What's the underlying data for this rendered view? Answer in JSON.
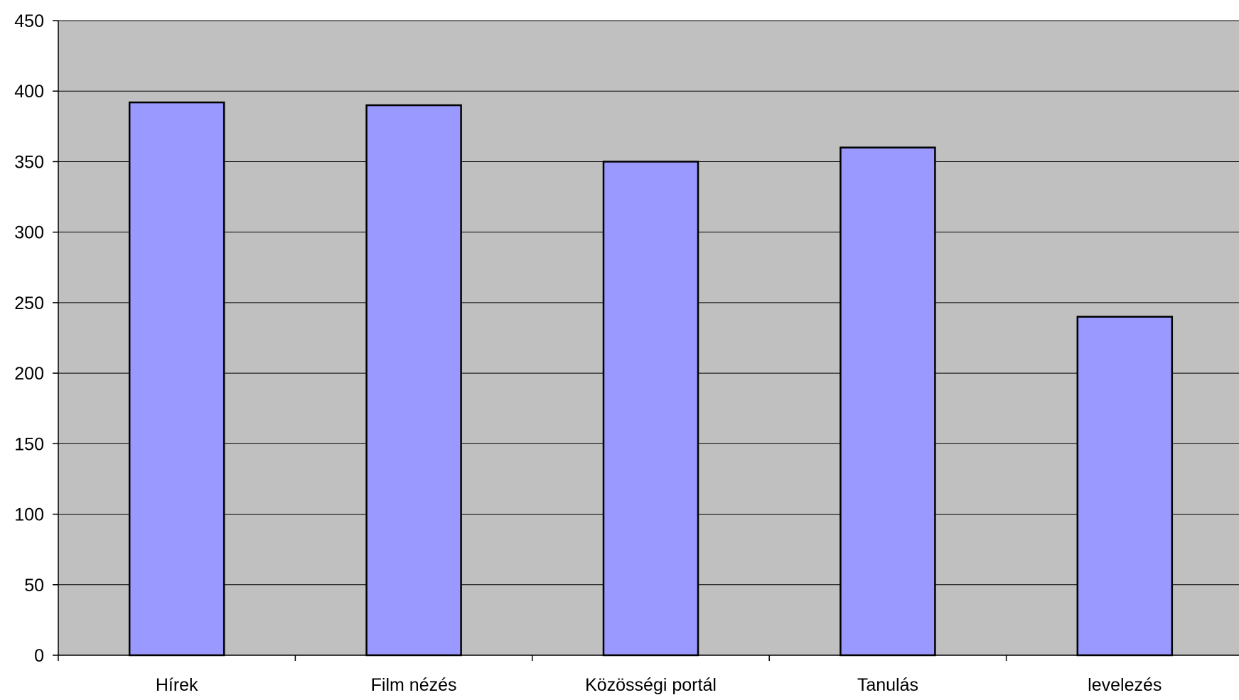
{
  "chart_data": {
    "type": "bar",
    "categories": [
      "Hírek",
      "Film nézés",
      "Közösségi portál",
      "Tanulás",
      "levelezés"
    ],
    "values": [
      392,
      390,
      350,
      360,
      240
    ],
    "title": "",
    "xlabel": "",
    "ylabel": "",
    "ylim": [
      0,
      450
    ],
    "yticks": [
      0,
      50,
      100,
      150,
      200,
      250,
      300,
      350,
      400,
      450
    ],
    "grid": true,
    "legend": "none",
    "colors": {
      "bar_fill": "#9999ff",
      "bar_stroke": "#000000",
      "plot_background": "#c0c0c0",
      "gridline": "#000000",
      "page_background": "#ffffff"
    }
  }
}
